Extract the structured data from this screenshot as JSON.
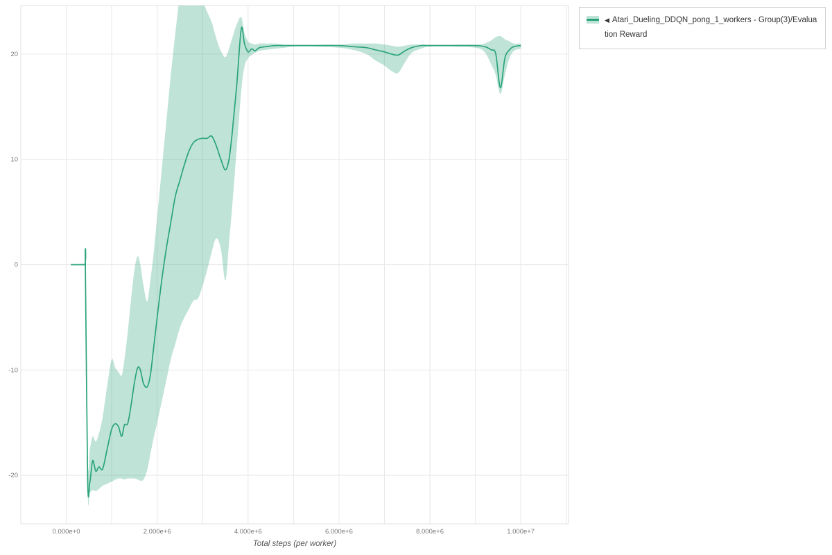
{
  "chart_data": {
    "type": "line",
    "title": "",
    "xlabel": "Total steps (per worker)",
    "ylabel": "",
    "xlim_millions": [
      -1,
      11.05
    ],
    "ylim": [
      -24.6,
      24.6
    ],
    "grid": true,
    "x_minor_grid_step_millions": 1,
    "legend_position": "top-right",
    "x_ticks": [
      {
        "value_millions": 0,
        "label": "0.000e+0"
      },
      {
        "value_millions": 2,
        "label": "2.000e+6"
      },
      {
        "value_millions": 4,
        "label": "4.000e+6"
      },
      {
        "value_millions": 6,
        "label": "6.000e+6"
      },
      {
        "value_millions": 8,
        "label": "8.000e+6"
      },
      {
        "value_millions": 10,
        "label": "1.000e+7"
      }
    ],
    "y_ticks": [
      {
        "value": -20,
        "label": "-20"
      },
      {
        "value": -10,
        "label": "-10"
      },
      {
        "value": 0,
        "label": "0"
      },
      {
        "value": 10,
        "label": "10"
      },
      {
        "value": 20,
        "label": "20"
      }
    ],
    "colors": {
      "line": "#2aa37c",
      "band": "#2aa37c",
      "band_opacity": 0.3,
      "grid": "#e8e8e8",
      "border": "#e0e0e0",
      "tick_text": "#777777",
      "label_text": "#555555"
    },
    "series": [
      {
        "name": "Atari_Dueling_DDQN_pong_1_workers - Group(3)/Evaluation Reward",
        "points_format": [
          "x_millions",
          "mean",
          "band_lower",
          "band_upper"
        ],
        "points": [
          [
            0.1,
            0.0,
            0.0,
            0.0
          ],
          [
            0.4,
            0.0,
            0.0,
            0.0
          ],
          [
            0.42,
            0.0,
            0.0,
            0.0
          ],
          [
            0.47,
            -20.4,
            -21.2,
            -18.5
          ],
          [
            0.52,
            -20.6,
            -21.6,
            -17.5
          ],
          [
            0.58,
            -18.6,
            -21.4,
            -16.3
          ],
          [
            0.65,
            -19.6,
            -21.5,
            -16.8
          ],
          [
            0.72,
            -19.2,
            -21.3,
            -16.0
          ],
          [
            0.8,
            -19.4,
            -21.0,
            -14.5
          ],
          [
            0.9,
            -17.5,
            -20.8,
            -11.5
          ],
          [
            1.0,
            -15.6,
            -20.6,
            -9.0
          ],
          [
            1.08,
            -15.1,
            -20.4,
            -9.8
          ],
          [
            1.15,
            -15.4,
            -20.3,
            -10.2
          ],
          [
            1.22,
            -16.3,
            -20.3,
            -10.5
          ],
          [
            1.28,
            -15.2,
            -20.4,
            -9.0
          ],
          [
            1.35,
            -15.1,
            -20.3,
            -6.5
          ],
          [
            1.42,
            -13.5,
            -20.3,
            -3.5
          ],
          [
            1.5,
            -11.2,
            -20.3,
            -0.5
          ],
          [
            1.57,
            -9.8,
            -20.4,
            0.8
          ],
          [
            1.63,
            -10.0,
            -20.5,
            0.0
          ],
          [
            1.7,
            -11.3,
            -20.4,
            -2.0
          ],
          [
            1.78,
            -11.6,
            -19.5,
            -3.5
          ],
          [
            1.85,
            -10.5,
            -18.0,
            -1.5
          ],
          [
            1.92,
            -8.0,
            -16.5,
            1.0
          ],
          [
            2.0,
            -5.0,
            -15.0,
            4.5
          ],
          [
            2.1,
            -1.5,
            -13.0,
            9.0
          ],
          [
            2.2,
            1.5,
            -11.0,
            13.5
          ],
          [
            2.3,
            4.0,
            -9.0,
            18.0
          ],
          [
            2.4,
            6.5,
            -7.5,
            22.0
          ],
          [
            2.5,
            8.0,
            -6.0,
            25.5
          ],
          [
            2.6,
            9.5,
            -5.0,
            27.0
          ],
          [
            2.7,
            10.8,
            -4.2,
            27.5
          ],
          [
            2.8,
            11.6,
            -3.4,
            27.0
          ],
          [
            2.9,
            11.9,
            -3.2,
            26.0
          ],
          [
            3.0,
            12.0,
            -2.0,
            25.0
          ],
          [
            3.1,
            12.0,
            -0.5,
            24.0
          ],
          [
            3.2,
            12.2,
            1.2,
            23.0
          ],
          [
            3.3,
            11.3,
            2.5,
            21.5
          ],
          [
            3.4,
            10.0,
            1.5,
            20.3
          ],
          [
            3.5,
            9.0,
            -1.5,
            19.7
          ],
          [
            3.58,
            10.0,
            2.0,
            20.5
          ],
          [
            3.65,
            12.5,
            5.5,
            21.5
          ],
          [
            3.75,
            17.0,
            11.0,
            22.8
          ],
          [
            3.85,
            22.4,
            16.5,
            23.5
          ],
          [
            3.92,
            21.0,
            18.8,
            22.0
          ],
          [
            4.0,
            20.2,
            19.6,
            21.2
          ],
          [
            4.08,
            20.5,
            19.9,
            21.0
          ],
          [
            4.15,
            20.3,
            20.1,
            20.9
          ],
          [
            4.25,
            20.6,
            20.3,
            21.0
          ],
          [
            4.4,
            20.7,
            20.4,
            21.0
          ],
          [
            4.6,
            20.8,
            20.5,
            21.0
          ],
          [
            4.8,
            20.8,
            20.6,
            20.9
          ],
          [
            5.0,
            20.8,
            20.7,
            20.9
          ],
          [
            5.5,
            20.8,
            20.7,
            20.9
          ],
          [
            6.0,
            20.8,
            20.6,
            20.9
          ],
          [
            6.3,
            20.7,
            20.4,
            21.0
          ],
          [
            6.6,
            20.6,
            20.0,
            21.0
          ],
          [
            6.8,
            20.4,
            19.4,
            21.0
          ],
          [
            7.0,
            20.2,
            18.9,
            20.9
          ],
          [
            7.15,
            20.0,
            18.4,
            20.8
          ],
          [
            7.3,
            19.9,
            18.2,
            20.7
          ],
          [
            7.45,
            20.3,
            19.2,
            20.8
          ],
          [
            7.6,
            20.6,
            20.1,
            20.9
          ],
          [
            7.8,
            20.8,
            20.5,
            20.9
          ],
          [
            8.0,
            20.8,
            20.7,
            20.9
          ],
          [
            8.5,
            20.8,
            20.7,
            20.9
          ],
          [
            9.0,
            20.8,
            20.6,
            20.9
          ],
          [
            9.2,
            20.7,
            20.2,
            21.0
          ],
          [
            9.35,
            20.4,
            19.0,
            21.3
          ],
          [
            9.45,
            20.0,
            18.0,
            21.6
          ],
          [
            9.55,
            16.8,
            16.2,
            21.7
          ],
          [
            9.65,
            19.6,
            18.0,
            21.4
          ],
          [
            9.75,
            20.4,
            19.6,
            21.2
          ],
          [
            9.85,
            20.7,
            20.3,
            21.0
          ],
          [
            10.0,
            20.8,
            20.5,
            21.0
          ]
        ]
      }
    ]
  },
  "legend": {
    "collapse_arrow": "◀",
    "series_label": "Atari_Dueling_DDQN_pong_1_workers - Group(3)/Evaluation Reward"
  }
}
